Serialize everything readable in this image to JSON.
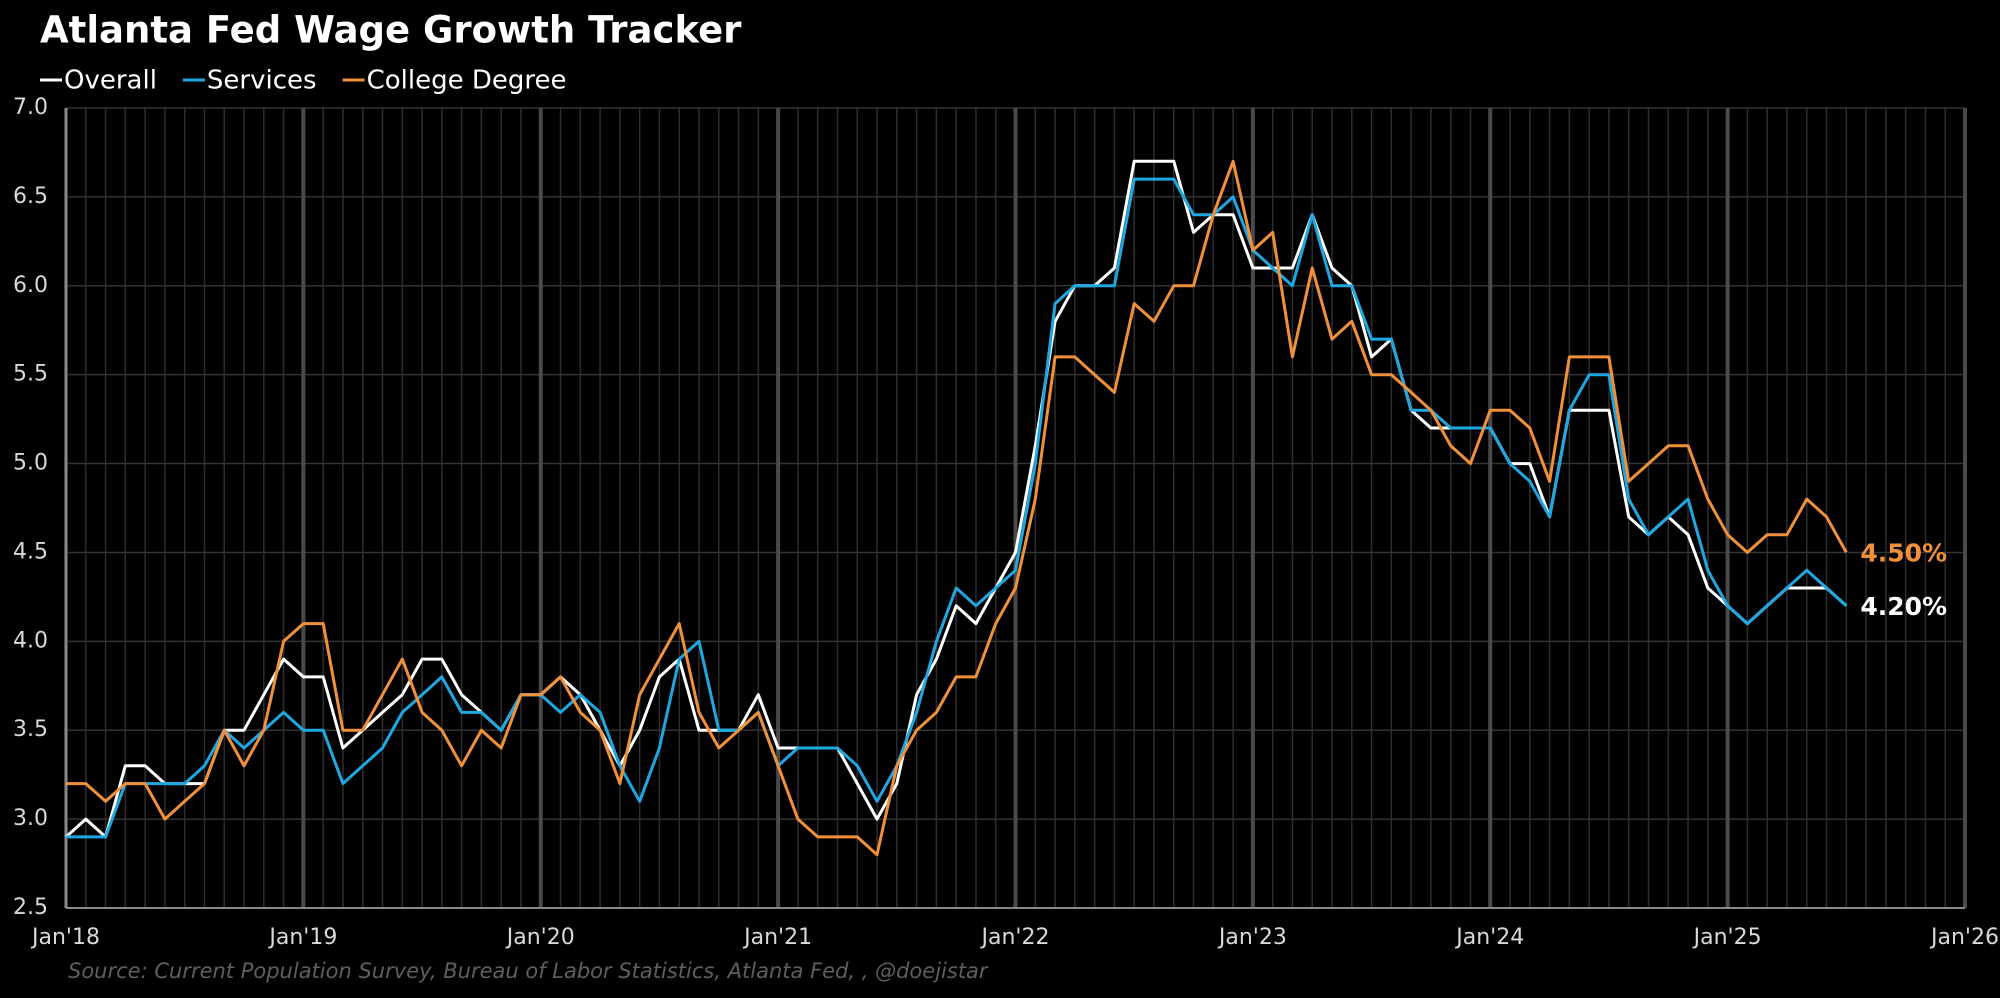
{
  "chart_data": {
    "type": "line",
    "title": "Atlanta Fed Wage Growth Tracker",
    "source": "Source:  Current Population Survey, Bureau of Labor Statistics, Atlanta Fed, , @doejistar",
    "x": [
      "2018-01",
      "2018-02",
      "2018-03",
      "2018-04",
      "2018-05",
      "2018-06",
      "2018-07",
      "2018-08",
      "2018-09",
      "2018-10",
      "2018-11",
      "2018-12",
      "2019-01",
      "2019-02",
      "2019-03",
      "2019-04",
      "2019-05",
      "2019-06",
      "2019-07",
      "2019-08",
      "2019-09",
      "2019-10",
      "2019-11",
      "2019-12",
      "2020-01",
      "2020-02",
      "2020-03",
      "2020-04",
      "2020-05",
      "2020-06",
      "2020-07",
      "2020-08",
      "2020-09",
      "2020-10",
      "2020-11",
      "2020-12",
      "2021-01",
      "2021-02",
      "2021-03",
      "2021-04",
      "2021-05",
      "2021-06",
      "2021-07",
      "2021-08",
      "2021-09",
      "2021-10",
      "2021-11",
      "2021-12",
      "2022-01",
      "2022-02",
      "2022-03",
      "2022-04",
      "2022-05",
      "2022-06",
      "2022-07",
      "2022-08",
      "2022-09",
      "2022-10",
      "2022-11",
      "2022-12",
      "2023-01",
      "2023-02",
      "2023-03",
      "2023-04",
      "2023-05",
      "2023-06",
      "2023-07",
      "2023-08",
      "2023-09",
      "2023-10",
      "2023-11",
      "2023-12",
      "2024-01",
      "2024-02",
      "2024-03",
      "2024-04",
      "2024-05",
      "2024-06",
      "2024-07",
      "2024-08",
      "2024-09",
      "2024-10",
      "2024-11",
      "2024-12",
      "2025-01",
      "2025-02",
      "2025-03",
      "2025-04",
      "2025-05",
      "2025-06",
      "2025-07"
    ],
    "series": [
      {
        "name": "Overall",
        "color": "#ffffff",
        "last_label": "4.20%",
        "values": [
          2.9,
          3.0,
          2.9,
          3.3,
          3.3,
          3.2,
          3.2,
          3.2,
          3.5,
          3.5,
          3.7,
          3.9,
          3.8,
          3.8,
          3.4,
          3.5,
          3.6,
          3.7,
          3.9,
          3.9,
          3.7,
          3.6,
          3.5,
          3.7,
          3.7,
          3.8,
          3.7,
          3.5,
          3.3,
          3.5,
          3.8,
          3.9,
          3.5,
          3.5,
          3.5,
          3.7,
          3.4,
          3.4,
          3.4,
          3.4,
          3.2,
          3.0,
          3.2,
          3.7,
          3.9,
          4.2,
          4.1,
          4.3,
          4.5,
          5.1,
          5.8,
          6.0,
          6.0,
          6.1,
          6.7,
          6.7,
          6.7,
          6.3,
          6.4,
          6.4,
          6.1,
          6.1,
          6.1,
          6.4,
          6.1,
          6.0,
          5.6,
          5.7,
          5.3,
          5.2,
          5.2,
          5.2,
          5.2,
          5.0,
          5.0,
          4.7,
          5.3,
          5.3,
          5.3,
          4.7,
          4.6,
          4.7,
          4.6,
          4.3,
          4.2,
          4.1,
          4.2,
          4.3,
          4.3,
          4.3,
          4.2
        ]
      },
      {
        "name": "Services",
        "color": "#1ea7e1",
        "values": [
          2.9,
          2.9,
          2.9,
          3.2,
          3.2,
          3.2,
          3.2,
          3.3,
          3.5,
          3.4,
          3.5,
          3.6,
          3.5,
          3.5,
          3.2,
          3.3,
          3.4,
          3.6,
          3.7,
          3.8,
          3.6,
          3.6,
          3.5,
          3.7,
          3.7,
          3.6,
          3.7,
          3.6,
          3.3,
          3.1,
          3.4,
          3.9,
          4.0,
          3.5,
          3.5,
          3.6,
          3.3,
          3.4,
          3.4,
          3.4,
          3.3,
          3.1,
          3.3,
          3.6,
          4.0,
          4.3,
          4.2,
          4.3,
          4.4,
          5.0,
          5.9,
          6.0,
          6.0,
          6.0,
          6.6,
          6.6,
          6.6,
          6.4,
          6.4,
          6.5,
          6.2,
          6.1,
          6.0,
          6.4,
          6.0,
          6.0,
          5.7,
          5.7,
          5.3,
          5.3,
          5.2,
          5.2,
          5.2,
          5.0,
          4.9,
          4.7,
          5.3,
          5.5,
          5.5,
          4.8,
          4.6,
          4.7,
          4.8,
          4.4,
          4.2,
          4.1,
          4.2,
          4.3,
          4.4,
          4.3,
          4.2
        ]
      },
      {
        "name": "College Degree",
        "color": "#f0903a",
        "last_label": "4.50%",
        "values": [
          3.2,
          3.2,
          3.1,
          3.2,
          3.2,
          3.0,
          3.1,
          3.2,
          3.5,
          3.3,
          3.5,
          4.0,
          4.1,
          4.1,
          3.5,
          3.5,
          3.7,
          3.9,
          3.6,
          3.5,
          3.3,
          3.5,
          3.4,
          3.7,
          3.7,
          3.8,
          3.6,
          3.5,
          3.2,
          3.7,
          3.9,
          4.1,
          3.6,
          3.4,
          3.5,
          3.6,
          3.3,
          3.0,
          2.9,
          2.9,
          2.9,
          2.8,
          3.3,
          3.5,
          3.6,
          3.8,
          3.8,
          4.1,
          4.3,
          4.8,
          5.6,
          5.6,
          5.5,
          5.4,
          5.9,
          5.8,
          6.0,
          6.0,
          6.4,
          6.7,
          6.2,
          6.3,
          5.6,
          6.1,
          5.7,
          5.8,
          5.5,
          5.5,
          5.4,
          5.3,
          5.1,
          5.0,
          5.3,
          5.3,
          5.2,
          4.9,
          5.6,
          5.6,
          5.6,
          4.9,
          5.0,
          5.1,
          5.1,
          4.8,
          4.6,
          4.5,
          4.6,
          4.6,
          4.8,
          4.7,
          4.5
        ]
      }
    ],
    "xlim": [
      "2018-01",
      "2026-01"
    ],
    "xticks": [
      {
        "value": "2018-01",
        "label": "Jan'18"
      },
      {
        "value": "2019-01",
        "label": "Jan'19"
      },
      {
        "value": "2020-01",
        "label": "Jan'20"
      },
      {
        "value": "2021-01",
        "label": "Jan'21"
      },
      {
        "value": "2022-01",
        "label": "Jan'22"
      },
      {
        "value": "2023-01",
        "label": "Jan'23"
      },
      {
        "value": "2024-01",
        "label": "Jan'24"
      },
      {
        "value": "2025-01",
        "label": "Jan'25"
      },
      {
        "value": "2026-01",
        "label": "Jan'26"
      }
    ],
    "ylim": [
      2.5,
      7.0
    ],
    "yticks": [
      {
        "value": 2.5,
        "label": "2.5"
      },
      {
        "value": 3,
        "label": "3.0"
      },
      {
        "value": 3.5,
        "label": "3.5"
      },
      {
        "value": 4,
        "label": "4.0"
      },
      {
        "value": 4.5,
        "label": "4.5"
      },
      {
        "value": 5,
        "label": "5.0"
      },
      {
        "value": 5.5,
        "label": "5.5"
      },
      {
        "value": 6,
        "label": "6.0"
      },
      {
        "value": 6.5,
        "label": "6.5"
      },
      {
        "value": 7,
        "label": "7.0"
      }
    ],
    "grid": true,
    "legend": "top-left"
  }
}
